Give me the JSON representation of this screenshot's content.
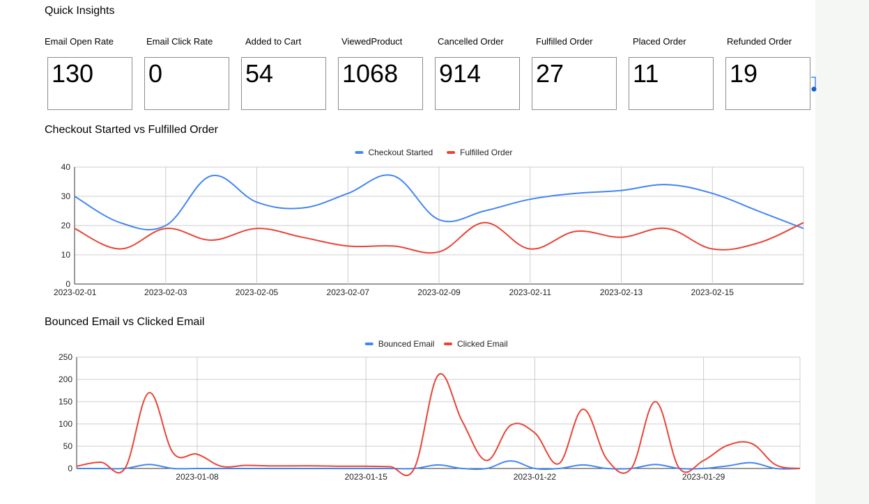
{
  "page": {
    "title": "Quick Insights"
  },
  "kpis": [
    {
      "label": "Email Open Rate",
      "value": "130"
    },
    {
      "label": "Email Click Rate",
      "value": "0"
    },
    {
      "label": "Added to Cart",
      "value": "54"
    },
    {
      "label": "ViewedProduct",
      "value": "1068"
    },
    {
      "label": "Cancelled Order",
      "value": "914"
    },
    {
      "label": "Fulfilled Order",
      "value": "27"
    },
    {
      "label": "Placed Order",
      "value": "11"
    },
    {
      "label": "Refunded Order",
      "value": "19"
    }
  ],
  "colors": {
    "blue": "#4285f4",
    "red": "#ea4335",
    "grid": "#cccccc",
    "axis": "#333333"
  },
  "chart_data": [
    {
      "type": "line",
      "title": "Checkout Started vs Fulfilled Order",
      "xlabel": "",
      "ylabel": "",
      "ylim": [
        0,
        40
      ],
      "yticks": [
        0,
        10,
        20,
        30,
        40
      ],
      "x": [
        "2023-02-01",
        "2023-02-02",
        "2023-02-03",
        "2023-02-04",
        "2023-02-05",
        "2023-02-06",
        "2023-02-07",
        "2023-02-08",
        "2023-02-09",
        "2023-02-10",
        "2023-02-11",
        "2023-02-12",
        "2023-02-13",
        "2023-02-14",
        "2023-02-15",
        "2023-02-16",
        "2023-02-17"
      ],
      "xticks": [
        "2023-02-01",
        "2023-02-03",
        "2023-02-05",
        "2023-02-07",
        "2023-02-09",
        "2023-02-11",
        "2023-02-13",
        "2023-02-15"
      ],
      "grid": true,
      "legend": "top-center",
      "series": [
        {
          "name": "Checkout Started",
          "color": "#4285f4",
          "values": [
            30,
            21,
            20,
            37,
            28,
            26,
            31,
            37,
            22,
            25,
            29,
            31,
            32,
            34,
            31,
            25,
            19
          ]
        },
        {
          "name": "Fulfilled Order",
          "color": "#ea4335",
          "values": [
            19,
            12,
            19,
            15,
            19,
            16,
            13,
            13,
            11,
            21,
            12,
            18,
            16,
            19,
            12,
            14,
            21
          ]
        }
      ]
    },
    {
      "type": "line",
      "title": "Bounced Email vs Clicked Email",
      "xlabel": "",
      "ylabel": "",
      "ylim": [
        0,
        250
      ],
      "yticks": [
        0,
        50,
        100,
        150,
        200,
        250
      ],
      "x": [
        "2023-01-03",
        "2023-01-04",
        "2023-01-05",
        "2023-01-06",
        "2023-01-07",
        "2023-01-08",
        "2023-01-09",
        "2023-01-10",
        "2023-01-11",
        "2023-01-12",
        "2023-01-13",
        "2023-01-14",
        "2023-01-15",
        "2023-01-16",
        "2023-01-17",
        "2023-01-18",
        "2023-01-19",
        "2023-01-20",
        "2023-01-21",
        "2023-01-22",
        "2023-01-23",
        "2023-01-24",
        "2023-01-25",
        "2023-01-26",
        "2023-01-27",
        "2023-01-28",
        "2023-01-29",
        "2023-01-30",
        "2023-01-31",
        "2023-02-01",
        "2023-02-02"
      ],
      "xticks": [
        "2023-01-08",
        "2023-01-15",
        "2023-01-22",
        "2023-01-29"
      ],
      "grid": true,
      "legend": "top-center",
      "series": [
        {
          "name": "Bounced Email",
          "color": "#4285f4",
          "values": [
            0,
            0,
            0,
            9,
            0,
            0,
            0,
            0,
            0,
            0,
            0,
            0,
            0,
            0,
            0,
            8,
            0,
            0,
            17,
            0,
            0,
            8,
            0,
            0,
            9,
            0,
            0,
            6,
            13,
            0,
            0
          ]
        },
        {
          "name": "Clicked Email",
          "color": "#ea4335",
          "values": [
            5,
            14,
            0,
            170,
            35,
            32,
            5,
            7,
            6,
            6,
            6,
            5,
            5,
            4,
            0,
            210,
            105,
            18,
            97,
            80,
            11,
            133,
            20,
            0,
            150,
            0,
            18,
            52,
            56,
            8,
            0
          ]
        }
      ]
    }
  ]
}
